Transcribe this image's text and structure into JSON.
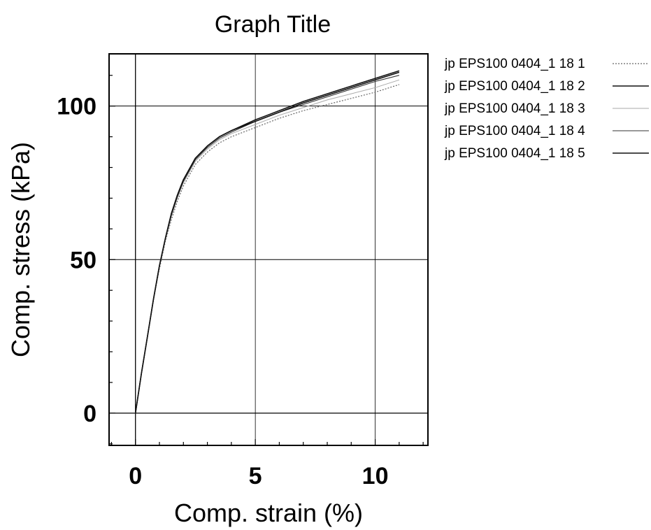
{
  "chart_data": {
    "type": "line",
    "title": "Graph Title",
    "xlabel": "Comp. strain (%)",
    "ylabel": "Comp. stress (kPa)",
    "xlim": [
      -1.1,
      12.2
    ],
    "ylim": [
      -10.5,
      117
    ],
    "x_ticks": [
      0,
      5,
      10
    ],
    "y_ticks": [
      0,
      50,
      100
    ],
    "x_tick_labels": [
      "0",
      "5",
      "10"
    ],
    "y_tick_labels": [
      "0",
      "50",
      "100"
    ],
    "grid": true,
    "legend_position": "right",
    "series": [
      {
        "name": "jp EPS100 0404_1 18 1",
        "style": "dotted",
        "x": [
          0,
          0.25,
          0.5,
          0.75,
          1.0,
          1.25,
          1.5,
          1.75,
          2.0,
          2.5,
          3.0,
          3.5,
          4.0,
          5.0,
          6.0,
          7.0,
          8.0,
          9.0,
          10.0,
          11.0
        ],
        "y": [
          0,
          13,
          25,
          37,
          47,
          56,
          63,
          69,
          74,
          81,
          85,
          88,
          90,
          93,
          96,
          98.5,
          100.5,
          102.5,
          104.5,
          107
        ]
      },
      {
        "name": "jp EPS100 0404_1 18 2",
        "style": "solid",
        "x": [
          0,
          0.25,
          0.5,
          0.75,
          1.0,
          1.25,
          1.5,
          1.75,
          2.0,
          2.5,
          3.0,
          3.5,
          4.0,
          5.0,
          6.0,
          7.0,
          8.0,
          9.0,
          10.0,
          11.0
        ],
        "y": [
          0,
          13,
          25,
          37,
          48,
          57,
          65,
          71,
          76,
          83,
          87,
          90,
          92,
          95.5,
          98.5,
          101.5,
          104,
          106.5,
          109,
          111.5
        ]
      },
      {
        "name": "jp EPS100 0404_1 18 3",
        "style": "faint",
        "x": [
          0,
          0.25,
          0.5,
          0.75,
          1.0,
          1.25,
          1.5,
          1.75,
          2.0,
          2.5,
          3.0,
          3.5,
          4.0,
          5.0,
          6.0,
          7.0,
          8.0,
          9.0,
          10.0,
          11.0
        ],
        "y": [
          0,
          13,
          25,
          37,
          47.5,
          56.5,
          64,
          70,
          75,
          82,
          86,
          89,
          91,
          94,
          97,
          99.5,
          102,
          104,
          106,
          108.5
        ]
      },
      {
        "name": "jp EPS100 0404_1 18 4",
        "style": "solid-thin",
        "x": [
          0,
          0.25,
          0.5,
          0.75,
          1.0,
          1.25,
          1.5,
          1.75,
          2.0,
          2.5,
          3.0,
          3.5,
          4.0,
          5.0,
          6.0,
          7.0,
          8.0,
          9.0,
          10.0,
          11.0
        ],
        "y": [
          0,
          13,
          25,
          37,
          48,
          57,
          64.5,
          70.5,
          75.5,
          82.5,
          86.5,
          89.5,
          91.5,
          95,
          98,
          100.5,
          103,
          105.5,
          108,
          110
        ]
      },
      {
        "name": "jp EPS100 0404_1 18 5",
        "style": "solid",
        "x": [
          0,
          0.25,
          0.5,
          0.75,
          1.0,
          1.25,
          1.5,
          1.75,
          2.0,
          2.5,
          3.0,
          3.5,
          4.0,
          5.0,
          6.0,
          7.0,
          8.0,
          9.0,
          10.0,
          11.0
        ],
        "y": [
          0,
          13,
          25,
          37,
          48,
          57,
          65,
          71,
          76,
          83,
          87,
          90,
          92,
          95,
          98,
          101,
          103.5,
          106,
          108.5,
          111
        ]
      }
    ]
  }
}
